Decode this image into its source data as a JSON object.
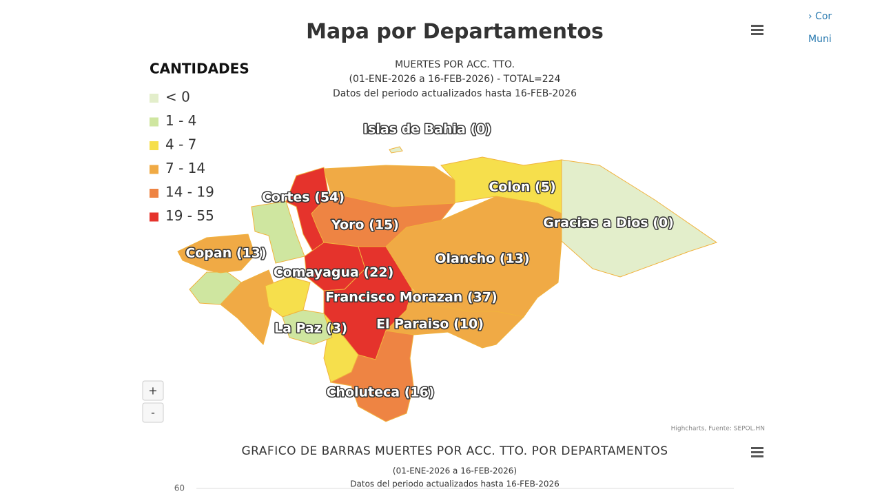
{
  "header": {
    "title": "Mapa por Departamentos",
    "subtitle": [
      "MUERTES POR ACC. TTO.",
      "(01-ENE-2026 a 16-FEB-2026) - TOTAL=224",
      "Datos del periodo actualizados hasta 16-FEB-2026"
    ]
  },
  "legend": {
    "title": "CANTIDADES",
    "classes": [
      {
        "label": "< 0",
        "to": 0,
        "color": "#e3eecb"
      },
      {
        "label": "1 - 4",
        "from": 1,
        "to": 4,
        "color": "#cfe6a0"
      },
      {
        "label": "4 - 7",
        "from": 4,
        "to": 7,
        "color": "#f6df4c"
      },
      {
        "label": "7 - 14",
        "from": 7,
        "to": 14,
        "color": "#f0aa45"
      },
      {
        "label": "14 - 19",
        "from": 14,
        "to": 19,
        "color": "#ee8443"
      },
      {
        "label": "19 - 55",
        "from": 19,
        "to": 55,
        "color": "#e5332c"
      }
    ]
  },
  "regions": [
    {
      "label": "Islas de Bahia (0)",
      "value": 0
    },
    {
      "label": "Cortes (54)",
      "value": 54
    },
    {
      "label": "Colon (5)",
      "value": 5
    },
    {
      "label": "Gracias a Dios (0)",
      "value": 0
    },
    {
      "label": "Yoro (15)",
      "value": 15
    },
    {
      "label": "Copan (13)",
      "value": 13
    },
    {
      "label": "Olancho (13)",
      "value": 13
    },
    {
      "label": "Comayagua (22)",
      "value": 22
    },
    {
      "label": "Francisco Morazan (37)",
      "value": 37
    },
    {
      "label": "El Paraiso (10)",
      "value": 10
    },
    {
      "label": "La Paz (3)",
      "value": 3
    },
    {
      "label": "Choluteca (16)",
      "value": 16
    }
  ],
  "zoom": [
    "+",
    "-"
  ],
  "credits": "Highcharts, Fuente: SEPOL.HN",
  "bar_chart": {
    "title": "GRAFICO DE BARRAS MUERTES POR ACC. TTO. POR DEPARTAMENTOS",
    "subtitle": [
      "(01-ENE-2026 a 16-FEB-2026)",
      "Datos del periodo actualizados hasta 16-FEB-2026"
    ],
    "yticks": [
      60
    ]
  },
  "side_links": [
    "› Cor",
    "Muni"
  ]
}
